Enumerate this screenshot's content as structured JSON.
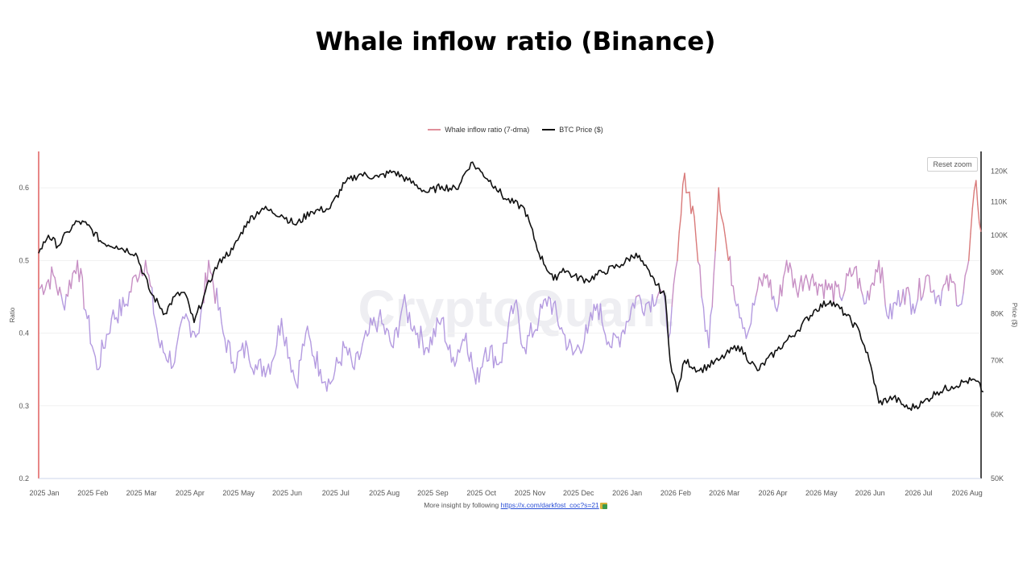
{
  "chart_data": {
    "type": "line",
    "title": "Whale inflow ratio (Binance)",
    "legend_position": "top-center",
    "grid": true,
    "watermark": "CryptoQuant",
    "y_left": {
      "label": "Ratio",
      "lim": [
        0.2,
        0.65
      ],
      "ticks": [
        "0.2",
        "0.3",
        "0.4",
        "0.5",
        "0.6"
      ]
    },
    "y_right": {
      "label": "Price ($)",
      "scale": "log",
      "lim": [
        50000,
        127000
      ],
      "ticks": [
        {
          "v": 50000,
          "label": "50K"
        },
        {
          "v": 60000,
          "label": "60K"
        },
        {
          "v": 70000,
          "label": "70K"
        },
        {
          "v": 80000,
          "label": "80K"
        },
        {
          "v": 90000,
          "label": "90K"
        },
        {
          "v": 100000,
          "label": "100K"
        },
        {
          "v": 110000,
          "label": "110K"
        },
        {
          "v": 120000,
          "label": "120K"
        }
      ]
    },
    "x_ticks": [
      "2025 Jan",
      "2025 Feb",
      "2025 Mar",
      "2025 Apr",
      "2025 May",
      "2025 Jun",
      "2025 Jul",
      "2025 Aug",
      "2025 Sep",
      "2025 Oct",
      "2025 Nov",
      "2025 Dec",
      "2026 Jan",
      "2026 Feb",
      "2026 Mar",
      "2026 Apr",
      "2026 May",
      "2026 Jun",
      "2026 Jul",
      "2026 Aug"
    ],
    "x_range_months": [
      0,
      19.45
    ],
    "series": [
      {
        "name": "Whale inflow ratio (7-dma)",
        "axis": "left",
        "x_months": [
          0,
          0.3,
          0.5,
          0.8,
          1.0,
          1.2,
          1.5,
          1.8,
          2.0,
          2.2,
          2.5,
          2.8,
          3.0,
          3.3,
          3.5,
          3.8,
          4.0,
          4.3,
          4.5,
          4.8,
          5.0,
          5.3,
          5.5,
          5.8,
          6.0,
          6.3,
          6.5,
          6.8,
          7.0,
          7.3,
          7.5,
          7.8,
          8.0,
          8.3,
          8.5,
          8.8,
          9.0,
          9.2,
          9.5,
          9.8,
          10.0,
          10.3,
          10.5,
          10.8,
          11.0,
          11.3,
          11.5,
          11.8,
          12.0,
          12.3,
          12.5,
          12.8,
          13.0,
          13.15,
          13.3,
          13.5,
          13.65,
          13.8,
          14.0,
          14.2,
          14.4,
          14.6,
          14.8,
          15.0,
          15.2,
          15.4,
          15.6,
          15.8,
          16.0,
          16.3,
          16.5,
          16.8,
          17.0,
          17.3,
          17.5,
          17.8,
          18.0,
          18.3,
          18.5,
          18.8,
          19.0,
          19.15,
          19.3,
          19.4
        ],
        "values": [
          0.46,
          0.48,
          0.44,
          0.5,
          0.42,
          0.35,
          0.42,
          0.44,
          0.48,
          0.5,
          0.38,
          0.36,
          0.42,
          0.4,
          0.5,
          0.4,
          0.36,
          0.38,
          0.35,
          0.36,
          0.42,
          0.33,
          0.4,
          0.35,
          0.33,
          0.38,
          0.35,
          0.4,
          0.42,
          0.38,
          0.44,
          0.4,
          0.38,
          0.42,
          0.36,
          0.4,
          0.33,
          0.38,
          0.36,
          0.44,
          0.38,
          0.42,
          0.45,
          0.4,
          0.37,
          0.4,
          0.44,
          0.38,
          0.4,
          0.45,
          0.44,
          0.46,
          0.4,
          0.5,
          0.62,
          0.56,
          0.45,
          0.38,
          0.6,
          0.5,
          0.44,
          0.4,
          0.46,
          0.48,
          0.43,
          0.5,
          0.46,
          0.48,
          0.47,
          0.46,
          0.45,
          0.49,
          0.44,
          0.5,
          0.42,
          0.46,
          0.44,
          0.48,
          0.45,
          0.47,
          0.44,
          0.5,
          0.61,
          0.54
        ],
        "color_above_05": "#d97a7a",
        "color_below_05": "#b49be0"
      },
      {
        "name": "BTC Price ($)",
        "axis": "right",
        "color": "#111111",
        "x_months": [
          0,
          0.2,
          0.4,
          0.6,
          0.8,
          1.0,
          1.3,
          1.6,
          2.0,
          2.3,
          2.6,
          2.8,
          3.0,
          3.2,
          3.4,
          3.6,
          3.8,
          4.0,
          4.3,
          4.6,
          5.0,
          5.3,
          5.6,
          6.0,
          6.3,
          6.6,
          7.0,
          7.3,
          7.6,
          8.0,
          8.3,
          8.6,
          8.9,
          9.1,
          9.4,
          9.6,
          10.0,
          10.3,
          10.6,
          10.8,
          11.0,
          11.3,
          11.6,
          12.0,
          12.3,
          12.6,
          12.9,
          13.0,
          13.15,
          13.3,
          13.6,
          14.0,
          14.4,
          14.8,
          15.2,
          15.6,
          16.0,
          16.3,
          16.6,
          16.9,
          17.1,
          17.3,
          17.6,
          17.9,
          18.2,
          18.5,
          18.8,
          19.1,
          19.3,
          19.45
        ],
        "values": [
          95000,
          100000,
          97000,
          101000,
          104000,
          103000,
          98000,
          97000,
          95000,
          85000,
          80000,
          84000,
          85000,
          78000,
          84000,
          90000,
          94000,
          96000,
          104000,
          108000,
          106000,
          103000,
          107000,
          108000,
          116000,
          119000,
          118000,
          120000,
          117000,
          113000,
          115000,
          114000,
          123000,
          120000,
          115000,
          111000,
          108000,
          95000,
          88000,
          91000,
          89000,
          88000,
          90000,
          92000,
          95000,
          89000,
          84000,
          70000,
          64000,
          70000,
          68000,
          70000,
          73000,
          68000,
          72000,
          76000,
          81000,
          83000,
          80000,
          76000,
          70000,
          62000,
          63000,
          61000,
          62000,
          64000,
          65000,
          66000,
          66000,
          64000
        ]
      }
    ]
  },
  "ui": {
    "reset_zoom": "Reset zoom",
    "footer_text": "More insight by following ",
    "footer_link": "https://x.com/darkfost_coc?s=21"
  }
}
